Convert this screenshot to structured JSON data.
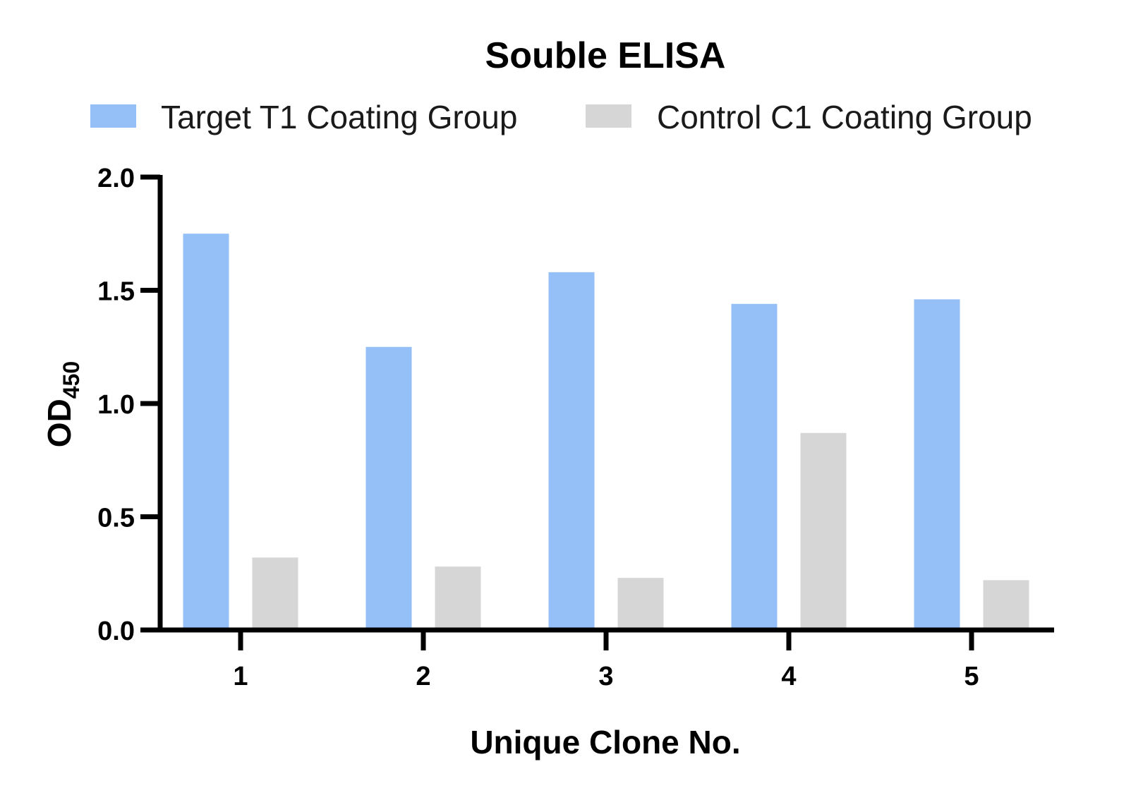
{
  "chart_data": {
    "type": "bar",
    "title": "Souble ELISA",
    "xlabel": "Unique Clone No.",
    "ylabel": "OD",
    "ylabel_subscript": "450",
    "categories": [
      "1",
      "2",
      "3",
      "4",
      "5"
    ],
    "ylim": [
      0,
      2.0
    ],
    "yticks": [
      "0.0",
      "0.5",
      "1.0",
      "1.5",
      "2.0"
    ],
    "grid": false,
    "legend_position": "top",
    "series": [
      {
        "name": "Target T1 Coating Group",
        "color": "#94bff7",
        "values": [
          1.75,
          1.25,
          1.58,
          1.44,
          1.46
        ]
      },
      {
        "name": "Control C1 Coating Group",
        "color": "#d6d6d6",
        "values": [
          0.32,
          0.28,
          0.23,
          0.87,
          0.22
        ]
      }
    ]
  }
}
